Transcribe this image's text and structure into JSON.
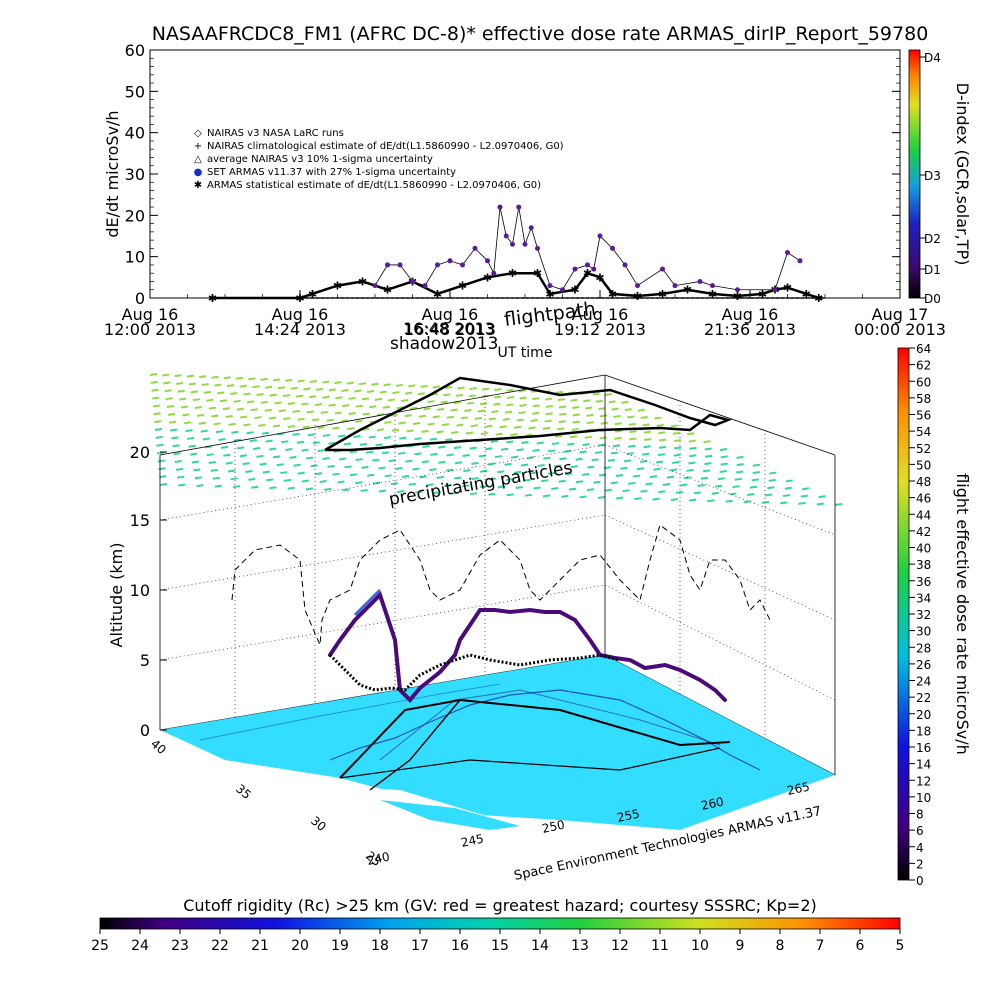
{
  "chart_data": [
    {
      "type": "scatter",
      "title": "NASAAFRCDC8_FM1 (AFRC DC-8)* effective dose rate ARMAS_dirIP_Report_59780",
      "ylabel": "dE/dt microSv/h",
      "ylim": [
        0,
        60
      ],
      "yticks": [
        "0",
        "10",
        "20",
        "30",
        "40",
        "50",
        "60"
      ],
      "xlim_hours": [
        12,
        24
      ],
      "xticks": [
        {
          "day": "Aug 16",
          "time": "12:00 2013",
          "h": 12.0
        },
        {
          "day": "Aug 16",
          "time": "14:24 2013",
          "h": 14.4
        },
        {
          "day": "Aug 16",
          "time": "16:48 2013",
          "h": 16.8
        },
        {
          "day": "Aug 16",
          "time": "19:12 2013",
          "h": 19.2
        },
        {
          "day": "Aug 16",
          "time": "21:36 2013",
          "h": 21.6
        },
        {
          "day": "Aug 17",
          "time": "00:00 2013",
          "h": 24.0
        }
      ],
      "xlabel": "UT time",
      "legend_position": "top-left",
      "legend": [
        {
          "symbol": "◇",
          "label": "NAIRAS v3 NASA LaRC runs"
        },
        {
          "symbol": "+",
          "label": "NAIRAS climatological estimate of dE/dt(L1.5860990 - L2.0970406, G0)"
        },
        {
          "symbol": "△",
          "label": "average NAIRAS v3 10% 1-sigma uncertainty"
        },
        {
          "symbol": "●",
          "label": "SET ARMAS v11.37 with 27% 1-sigma uncertainty",
          "color": "#1030d0"
        },
        {
          "symbol": "✱",
          "label": "ARMAS statistical estimate of dE/dt(L1.5860990 - L2.0970406, G0)"
        }
      ],
      "colorbar": {
        "label": "D-index (GCR,solar,TP)",
        "ticks": [
          "D0",
          "D1",
          "D2",
          "D3",
          "D4"
        ]
      },
      "series": [
        {
          "marker": "asterisk",
          "x": [
            13.0,
            14.4,
            14.6,
            15.0,
            15.4,
            15.8,
            16.2,
            16.6,
            17.0,
            17.4,
            17.8,
            18.2,
            18.4,
            18.8,
            19.0,
            19.2,
            19.4,
            19.8,
            20.2,
            20.6,
            21.0,
            21.4,
            21.8,
            22.0,
            22.2,
            22.5,
            22.7
          ],
          "y": [
            0,
            0,
            1,
            3,
            4,
            2,
            4,
            1,
            3,
            5,
            6,
            6,
            1,
            2,
            6,
            5,
            1,
            0.5,
            1,
            2,
            1,
            0.5,
            1,
            2,
            2.5,
            1,
            0
          ]
        },
        {
          "marker": "dot",
          "x": [
            15.6,
            15.8,
            16.0,
            16.2,
            16.4,
            16.6,
            16.8,
            17.0,
            17.2,
            17.4,
            17.5,
            17.6,
            17.7,
            17.8,
            17.9,
            18.0,
            18.1,
            18.2,
            18.4,
            18.6,
            18.8,
            19.0,
            19.1,
            19.2,
            19.4,
            19.6,
            19.8,
            20.2,
            20.4,
            20.8,
            21.0,
            21.4,
            22.0,
            22.2,
            22.4
          ],
          "y": [
            3,
            8,
            8,
            4,
            3,
            8,
            9,
            8,
            12,
            9,
            6,
            22,
            15,
            13,
            22,
            13,
            17,
            12,
            3,
            2,
            7,
            8,
            7,
            15,
            12,
            8,
            3,
            7,
            3,
            4,
            3,
            2,
            2,
            11,
            9
          ]
        }
      ]
    },
    {
      "type": "scatter",
      "title": "flightpath",
      "zlabel": "Altitude (km)",
      "zticks": [
        "0",
        "5",
        "10",
        "15",
        "20"
      ],
      "lat_ticks": [
        "40",
        "35",
        "30",
        "25"
      ],
      "lon_ticks": [
        "240",
        "245",
        "250",
        "255",
        "260",
        "265"
      ],
      "labels": {
        "shadow": "shadow2013",
        "overlay_date": "16:48 2013",
        "precip": "precipitating particles",
        "credit": "Space Environment Technologies ARMAS v11.37"
      },
      "colorbar": {
        "label": "flight effective dose rate microSv/h",
        "ticks": [
          "0",
          "2",
          "4",
          "6",
          "8",
          "10",
          "12",
          "14",
          "16",
          "18",
          "20",
          "22",
          "24",
          "26",
          "28",
          "30",
          "32",
          "34",
          "36",
          "38",
          "40",
          "42",
          "44",
          "46",
          "48",
          "50",
          "52",
          "54",
          "56",
          "58",
          "60",
          "62",
          "64"
        ]
      }
    },
    {
      "type": "heatmap",
      "title": "Cutoff rigidity (Rc) >25 km (GV: red = greatest hazard; courtesy SSSRC; Kp=2)",
      "ticks": [
        "25",
        "24",
        "23",
        "22",
        "21",
        "20",
        "19",
        "18",
        "17",
        "16",
        "15",
        "14",
        "13",
        "12",
        "11",
        "10",
        "9",
        "8",
        "7",
        "6",
        "5"
      ]
    }
  ],
  "colors": {
    "map_fill": "#33ddff",
    "grid_top": "#7fe05a",
    "grid_bottom": "#22d6a0",
    "dose_dark": "#4a0a7a"
  }
}
